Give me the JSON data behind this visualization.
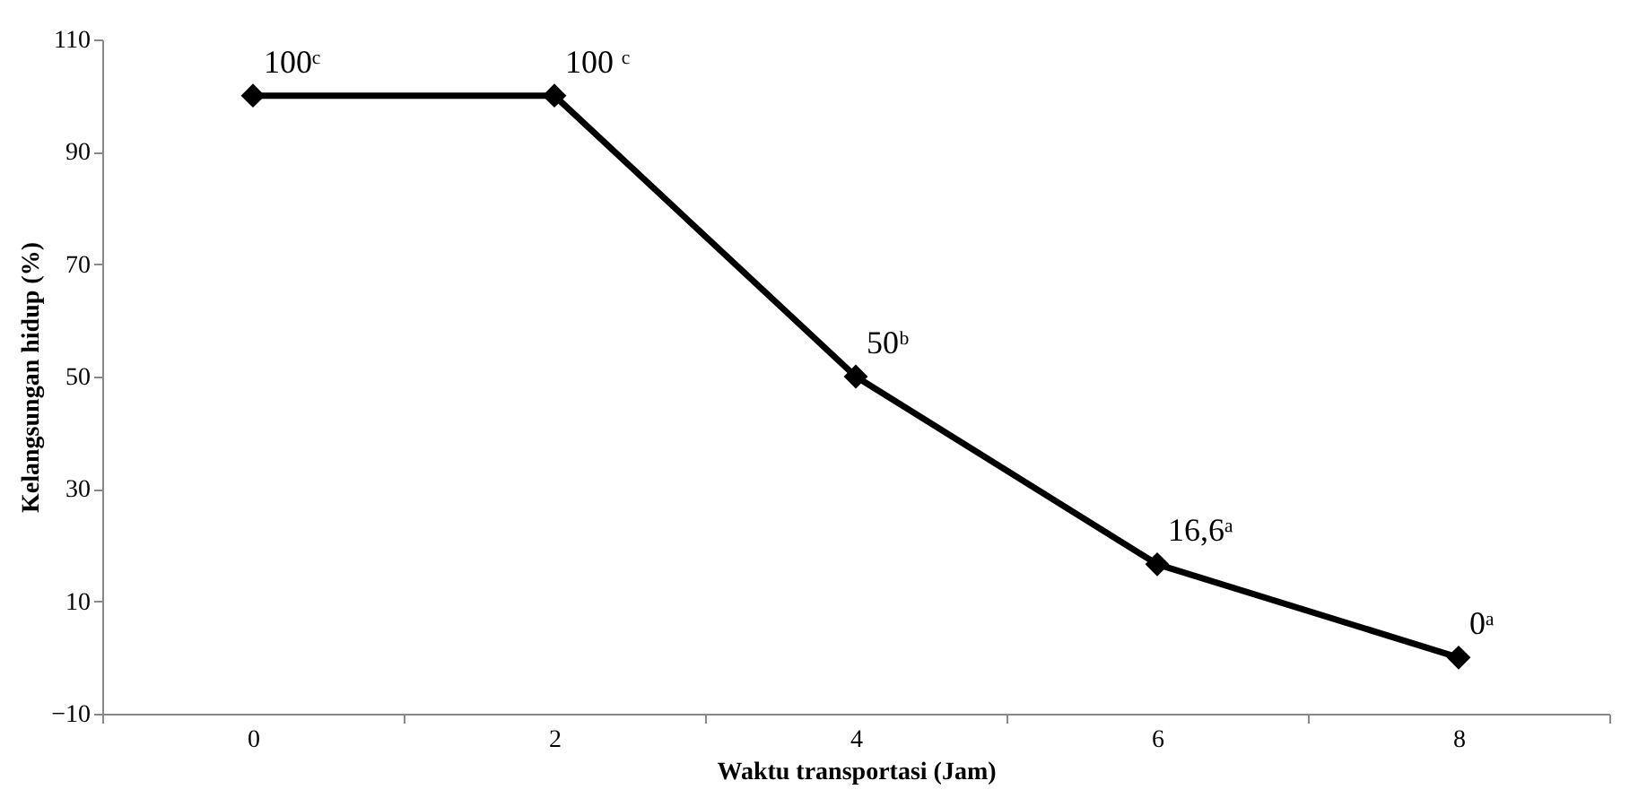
{
  "chart_data": {
    "type": "line",
    "xlabel": "Waktu transportasi (Jam)",
    "ylabel": "Kelangsungan hidup (%)",
    "categories": [
      "0",
      "2",
      "4",
      "6",
      "8"
    ],
    "series": [
      {
        "color": "#000000",
        "values": [
          100,
          100,
          50,
          16.6,
          0
        ],
        "value_labels": [
          "100ᶜ",
          "100 ᶜ",
          "50ᵇ",
          "16,6ᵃ",
          "0ᵃ"
        ]
      }
    ],
    "ylim": [
      -10,
      110
    ],
    "yticks": [
      -10,
      10,
      30,
      50,
      70,
      90,
      110
    ],
    "marker": "diamond",
    "line_style": "solid",
    "grid": false
  }
}
